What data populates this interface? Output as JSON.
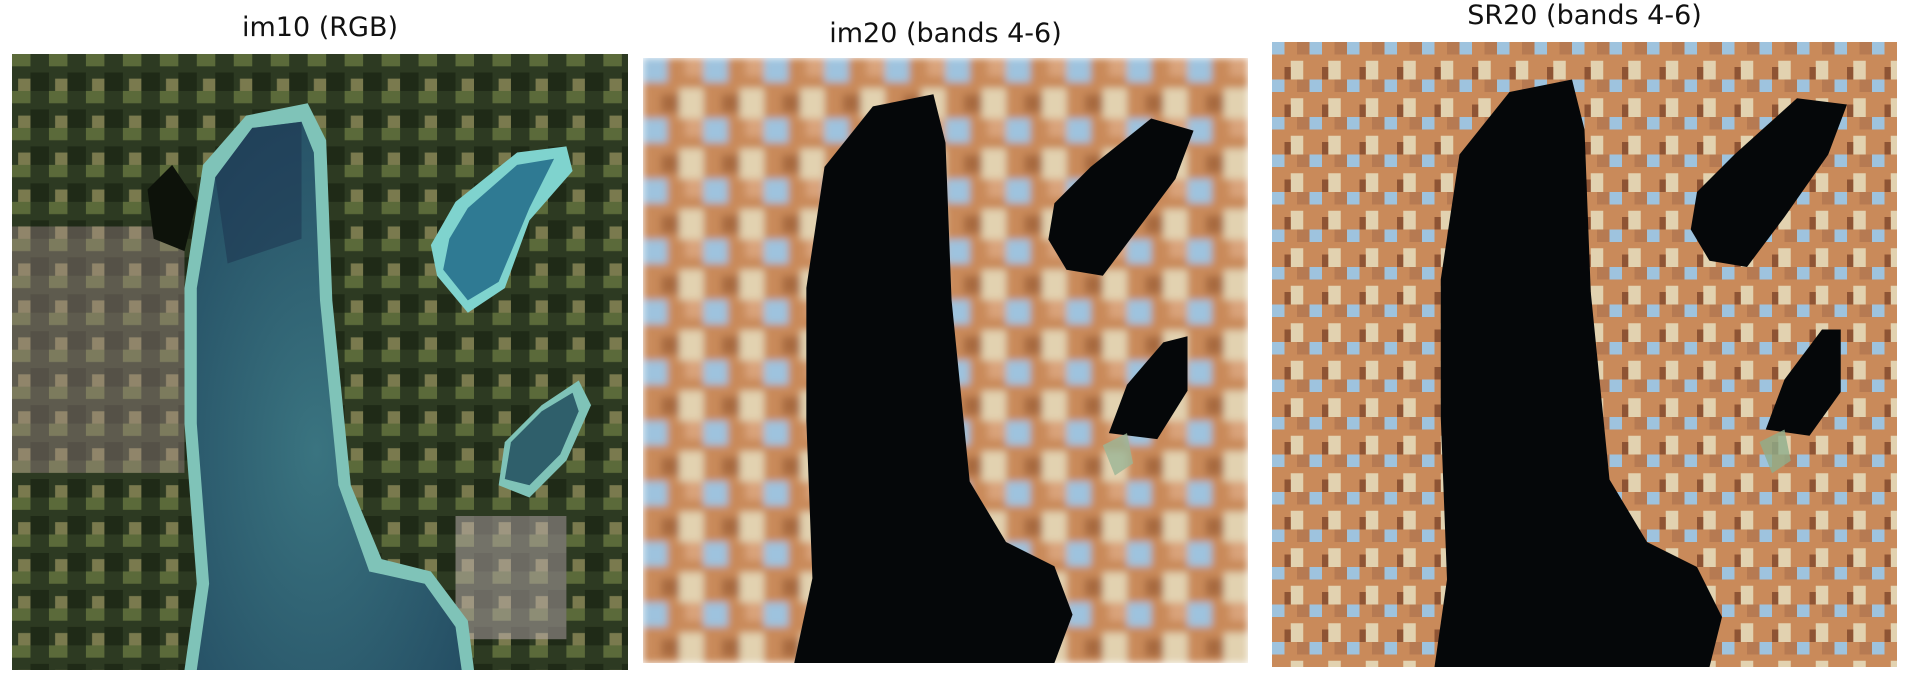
{
  "panels": [
    {
      "title": "im10 (RGB)"
    },
    {
      "title": "im20 (bands 4-6)"
    },
    {
      "title": "SR20 (bands 4-6)"
    }
  ],
  "colors": {
    "rgb_land": "#2d3a22",
    "rgb_field": "#5b6a3a",
    "rgb_urban": "#b99aa0",
    "rgb_lake": "#2f5f6b",
    "rgb_lake_deep": "#1d3550",
    "rgb_shore": "#7fc3b8",
    "false_color_land": "#c98a5a",
    "false_color_blue": "#9ec3de",
    "false_color_water": "#050709"
  }
}
